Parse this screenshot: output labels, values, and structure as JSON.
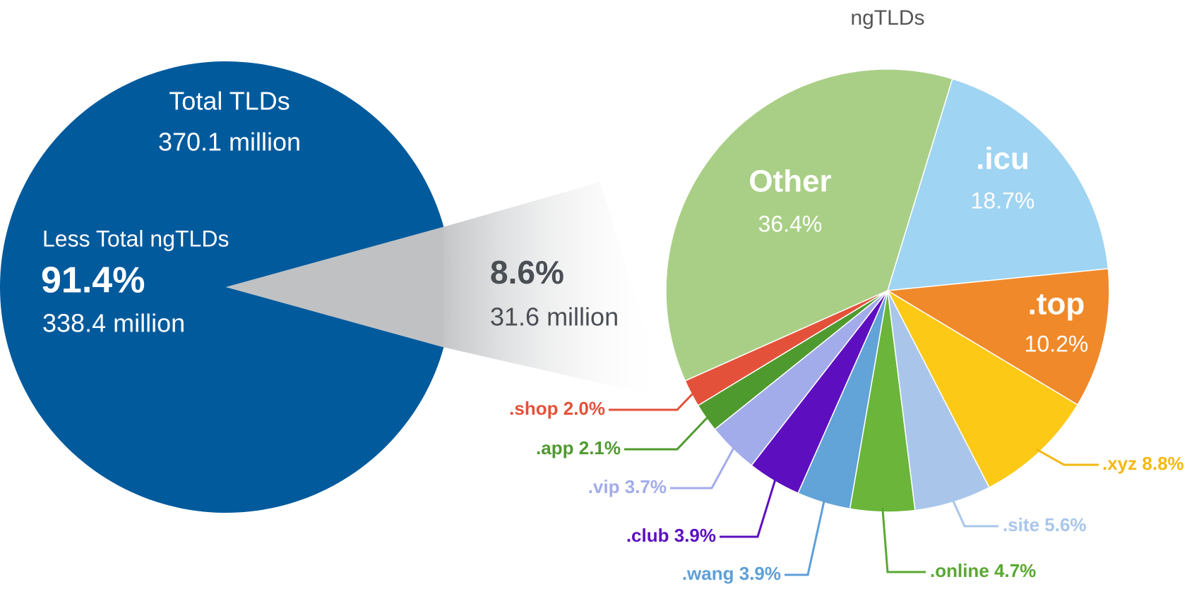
{
  "chart_data": [
    {
      "type": "pie",
      "title": "Total TLDs",
      "subtitle": "370.1 million",
      "categories": [
        "Less Total ngTLDs",
        null
      ],
      "values": [
        91.4,
        8.6
      ],
      "value_labels": [
        "91.4%",
        "8.6%"
      ],
      "amount_labels": [
        "338.4 million",
        "31.6 million"
      ],
      "colors": [
        "#015a9c",
        "#bfc1c3"
      ]
    },
    {
      "type": "pie",
      "title": "ngTLDs",
      "categories": [
        ".icu",
        ".top",
        ".xyz",
        ".site",
        ".online",
        ".wang",
        ".club",
        ".vip",
        ".app",
        ".shop",
        "Other"
      ],
      "values": [
        18.7,
        10.2,
        8.8,
        5.6,
        4.7,
        3.9,
        3.9,
        3.7,
        2.1,
        2.0,
        36.4
      ],
      "value_labels": [
        "18.7%",
        "10.2%",
        "8.8%",
        "5.6%",
        "4.7%",
        "3.9%",
        "3.9%",
        "3.7%",
        "2.1%",
        "2.0%",
        "36.4%"
      ],
      "colors": [
        "#9fd4f2",
        "#f0892a",
        "#fcc917",
        "#a9c6ea",
        "#6ab53a",
        "#62a3d8",
        "#5d0fc0",
        "#a3acea",
        "#4f9a2e",
        "#e4513a",
        "#a9cf86"
      ]
    }
  ]
}
